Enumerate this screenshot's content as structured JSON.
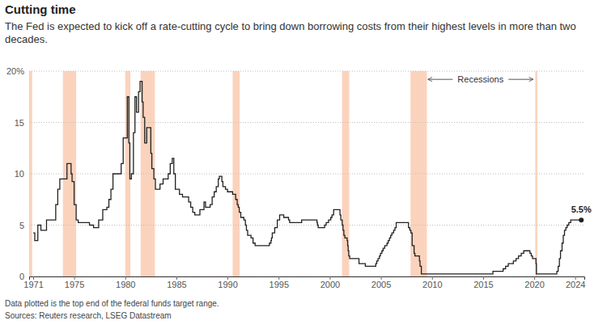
{
  "chart_data": {
    "type": "line",
    "title": "Cutting time",
    "subtitle": "The Fed is expected to kick off a rate-cutting cycle to bring down borrowing costs from their highest levels in more than two decades.",
    "notes": [
      "Data plotted is the top end of the federal funds target range.",
      "Sources: Reuters research, LSEG Datastream"
    ],
    "color": "#222222",
    "line_style": "step",
    "grid": true,
    "xlim": [
      1970.6,
      2024.9
    ],
    "xticks": [
      1971,
      1975,
      1980,
      1985,
      1990,
      1995,
      2000,
      2005,
      2010,
      2015,
      2020,
      2024
    ],
    "ylim": [
      0,
      20
    ],
    "yticks": [
      {
        "value": 20,
        "label": "20%"
      },
      15,
      10,
      5,
      0
    ],
    "recession_color": "#fbd3bd",
    "recessions": [
      {
        "start": 1970.6,
        "end": 1970.9
      },
      {
        "start": 1973.9,
        "end": 1975.2
      },
      {
        "start": 1980.0,
        "end": 1980.5
      },
      {
        "start": 1981.5,
        "end": 1982.9
      },
      {
        "start": 1990.5,
        "end": 1991.2
      },
      {
        "start": 2001.2,
        "end": 2001.9
      },
      {
        "start": 2007.9,
        "end": 2009.5
      },
      {
        "start": 2020.1,
        "end": 2020.3
      }
    ],
    "recession_label": {
      "text": "Recessions",
      "from": 2009.6,
      "to": 2019.9,
      "y": 19.2
    },
    "annotations": [
      {
        "label": "5.5%",
        "x": 2024.6,
        "y": 5.5
      }
    ],
    "x": [
      1971.0,
      1971.15,
      1971.45,
      1971.75,
      1972.3,
      1973.2,
      1973.4,
      1973.6,
      1974.3,
      1974.7,
      1974.8,
      1975.0,
      1975.2,
      1975.4,
      1976.5,
      1976.9,
      1977.4,
      1977.8,
      1978.2,
      1978.4,
      1978.6,
      1978.8,
      1979.6,
      1979.8,
      1980.2,
      1980.35,
      1980.45,
      1980.6,
      1980.8,
      1980.95,
      1981.1,
      1981.3,
      1981.45,
      1981.65,
      1981.75,
      1981.9,
      1982.1,
      1982.5,
      1982.6,
      1982.8,
      1982.95,
      1983.4,
      1983.7,
      1984.2,
      1984.4,
      1984.6,
      1984.75,
      1984.9,
      1985.3,
      1985.6,
      1986.2,
      1986.4,
      1986.6,
      1986.8,
      1987.3,
      1987.7,
      1987.85,
      1988.3,
      1988.5,
      1988.7,
      1988.9,
      1989.1,
      1989.2,
      1989.45,
      1989.55,
      1989.8,
      1990.0,
      1990.5,
      1990.8,
      1990.95,
      1991.05,
      1991.15,
      1991.3,
      1991.6,
      1991.75,
      1991.85,
      1991.97,
      1992.3,
      1992.5,
      1992.7,
      1994.1,
      1994.25,
      1994.3,
      1994.38,
      1994.62,
      1994.87,
      1995.1,
      1995.5,
      1995.97,
      1996.08,
      1997.25,
      1998.75,
      1998.8,
      1998.87,
      1999.5,
      1999.65,
      1999.88,
      2000.1,
      2000.22,
      2000.38,
      2001.0,
      2001.08,
      2001.22,
      2001.3,
      2001.38,
      2001.48,
      2001.7,
      2001.75,
      2001.8,
      2001.86,
      2001.95,
      2002.86,
      2003.48,
      2004.5,
      2004.6,
      2004.72,
      2004.86,
      2004.96,
      2005.1,
      2005.22,
      2005.38,
      2005.6,
      2005.72,
      2005.84,
      2005.96,
      2006.08,
      2006.25,
      2006.38,
      2006.5,
      2007.7,
      2007.83,
      2007.94,
      2008.06,
      2008.25,
      2008.33,
      2008.77,
      2008.83,
      2008.96,
      2015.96,
      2016.96,
      2017.2,
      2017.46,
      2017.96,
      2018.22,
      2018.46,
      2018.73,
      2018.97,
      2019.58,
      2019.71,
      2019.83,
      2020.17,
      2020.21,
      2022.21,
      2022.34,
      2022.46,
      2022.57,
      2022.72,
      2022.84,
      2022.96,
      2023.09,
      2023.22,
      2023.38,
      2023.57,
      2024.6
    ],
    "values": [
      4.25,
      3.5,
      5.0,
      4.5,
      5.5,
      7.0,
      8.5,
      9.5,
      11.0,
      10.0,
      9.25,
      7.0,
      5.5,
      5.25,
      5.0,
      4.75,
      5.5,
      6.5,
      6.75,
      7.5,
      8.5,
      10.0,
      11.0,
      13.5,
      17.5,
      13.0,
      9.5,
      10.0,
      14.0,
      17.5,
      16.0,
      18.0,
      19.0,
      17.0,
      15.5,
      13.0,
      14.5,
      12.0,
      10.5,
      9.5,
      8.5,
      9.0,
      9.5,
      10.0,
      11.0,
      11.5,
      10.0,
      8.5,
      8.0,
      7.75,
      7.25,
      6.75,
      6.25,
      6.0,
      6.5,
      7.25,
      6.75,
      7.0,
      7.75,
      8.25,
      8.75,
      9.5,
      9.75,
      9.25,
      8.75,
      8.5,
      8.25,
      8.0,
      7.5,
      7.0,
      6.75,
      6.25,
      5.75,
      5.5,
      5.0,
      4.5,
      4.0,
      3.75,
      3.25,
      3.0,
      3.25,
      3.5,
      3.75,
      4.25,
      4.75,
      5.5,
      6.0,
      5.75,
      5.5,
      5.25,
      5.5,
      5.25,
      5.0,
      4.75,
      5.0,
      5.25,
      5.5,
      5.75,
      6.0,
      6.5,
      6.0,
      5.5,
      5.0,
      4.5,
      4.0,
      3.75,
      3.5,
      3.0,
      2.5,
      2.0,
      1.75,
      1.25,
      1.0,
      1.25,
      1.5,
      1.75,
      2.0,
      2.25,
      2.5,
      2.75,
      3.0,
      3.25,
      3.5,
      3.75,
      4.0,
      4.25,
      4.5,
      4.75,
      5.25,
      4.75,
      4.5,
      4.25,
      3.0,
      2.25,
      2.0,
      1.5,
      1.0,
      0.25,
      0.5,
      0.75,
      1.0,
      1.25,
      1.5,
      1.75,
      2.0,
      2.25,
      2.5,
      2.25,
      2.0,
      1.75,
      1.25,
      0.25,
      0.5,
      1.0,
      1.75,
      2.5,
      3.25,
      4.0,
      4.5,
      4.75,
      5.0,
      5.25,
      5.5,
      5.5
    ]
  }
}
